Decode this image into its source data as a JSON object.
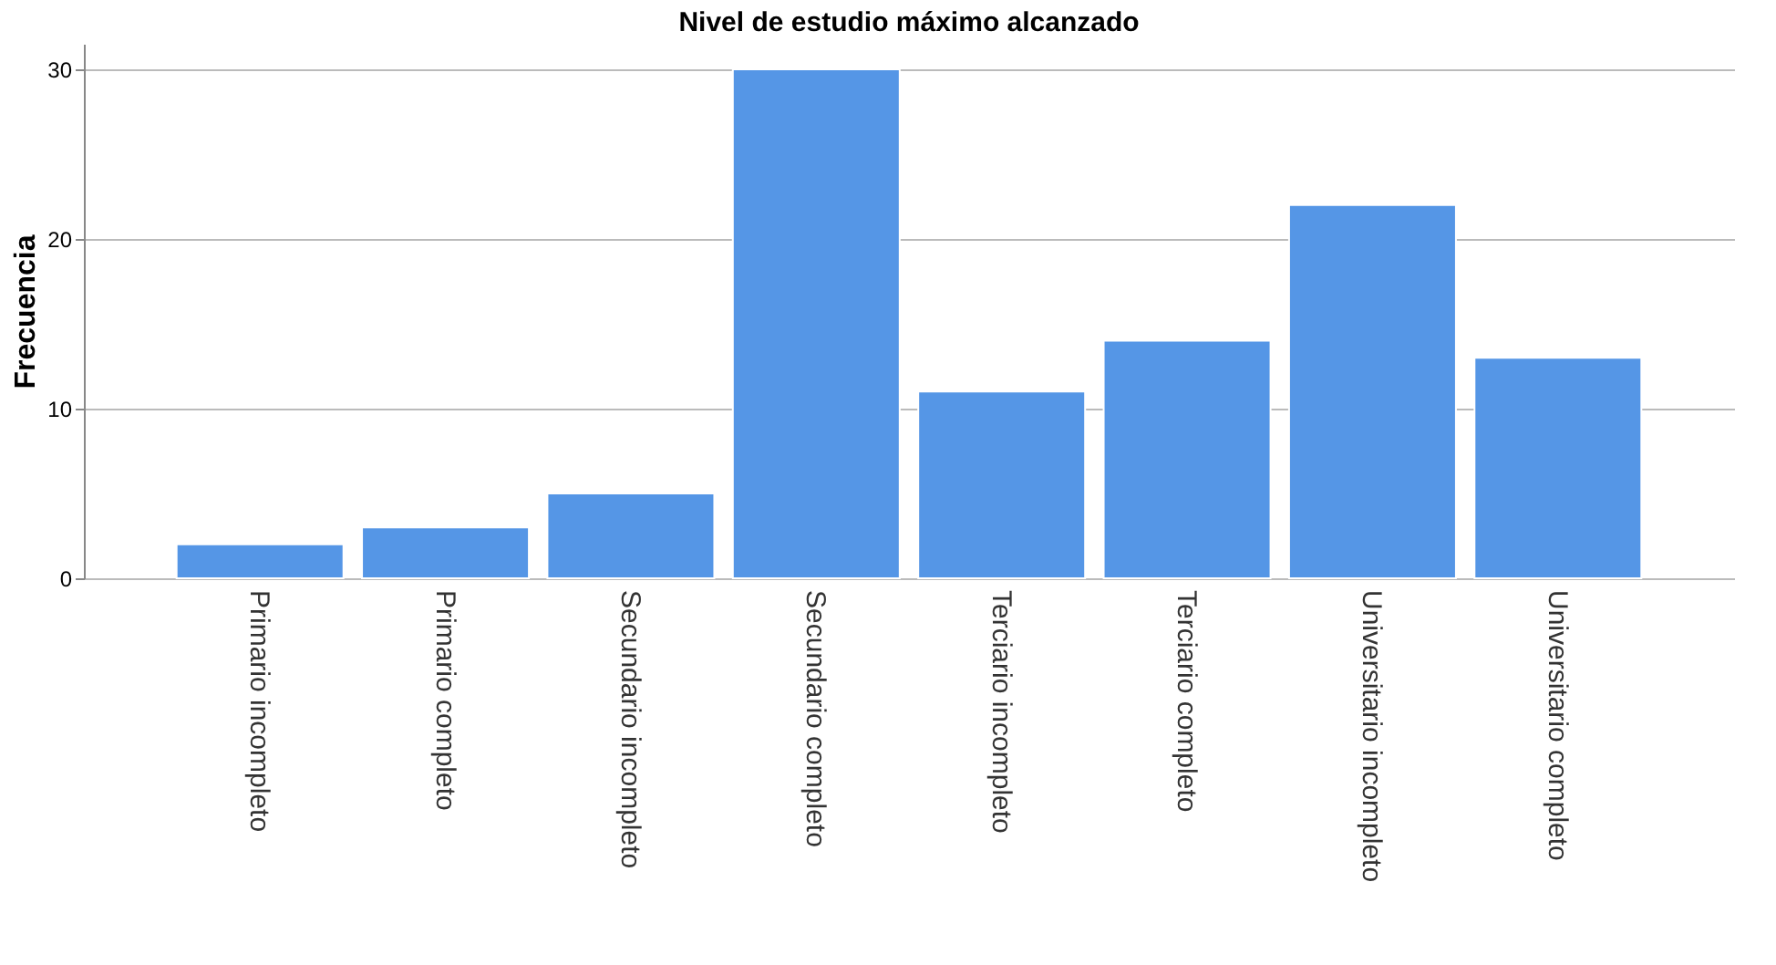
{
  "chart_data": {
    "type": "bar",
    "title": "Nivel de estudio máximo alcanzado",
    "ylabel": "Frecuencia",
    "categories": [
      "Primario incompleto",
      "Primario completo",
      "Secundario incompleto",
      "Secundario completo",
      "Terciario incompleto",
      "Terciario completo",
      "Universitario incompleto",
      "Universitario completo"
    ],
    "values": [
      2,
      3,
      5,
      30,
      11,
      14,
      22,
      13
    ],
    "color": "#5596e6",
    "ylim": [
      0,
      31.5
    ],
    "yticks": [
      0,
      10,
      20,
      30
    ],
    "grid": "y"
  }
}
